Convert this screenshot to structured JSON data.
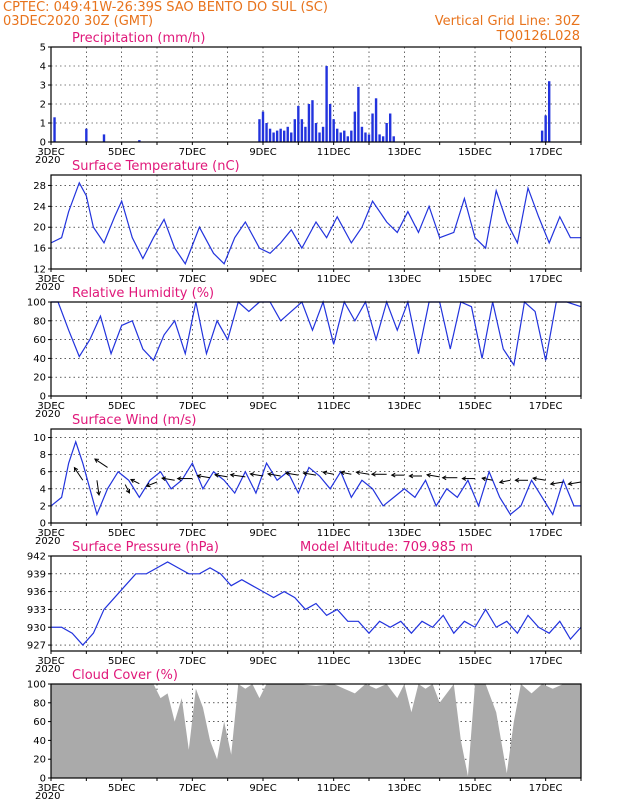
{
  "header": {
    "line1": "CPTEC:   049:41W-26:39S  SAO BENTO DO SUL (SC)",
    "line2": "03DEC2020 30Z (GMT)",
    "right1": "Vertical Grid Line: 30Z",
    "right2": "TQ0126L028"
  },
  "colors": {
    "series": "#2233dd",
    "cloud": "#aaaaaa",
    "title": "#e0187a",
    "header": "#e8731c",
    "arrow": "#000000"
  },
  "chart_data": [
    {
      "id": "precip",
      "type": "bar",
      "title": "Precipitation (mm/h)",
      "xlim": [
        0,
        15
      ],
      "ylim": [
        0,
        5
      ],
      "yticks": [
        0,
        1,
        2,
        3,
        4,
        5
      ],
      "x": [
        0.1,
        1,
        1.5,
        2.5,
        5.9,
        6.0,
        6.1,
        6.2,
        6.3,
        6.4,
        6.5,
        6.6,
        6.7,
        6.8,
        6.9,
        7.0,
        7.1,
        7.2,
        7.3,
        7.4,
        7.5,
        7.6,
        7.7,
        7.8,
        7.9,
        8.0,
        8.1,
        8.2,
        8.3,
        8.4,
        8.5,
        8.6,
        8.7,
        8.8,
        8.9,
        9.0,
        9.1,
        9.2,
        9.3,
        9.4,
        9.5,
        9.6,
        9.7,
        13.9,
        14.0,
        14.1
      ],
      "values": [
        1.3,
        0.7,
        0.4,
        0.1,
        1.2,
        1.6,
        1.0,
        0.7,
        0.5,
        0.6,
        0.7,
        0.6,
        0.8,
        0.5,
        1.2,
        1.9,
        1.2,
        0.8,
        2.0,
        2.2,
        1.0,
        0.5,
        0.8,
        4.0,
        2.0,
        1.2,
        0.7,
        0.5,
        0.6,
        0.3,
        0.6,
        1.6,
        2.9,
        0.8,
        0.5,
        0.4,
        1.5,
        2.3,
        0.4,
        0.3,
        1.0,
        1.5,
        0.3,
        0.6,
        1.4,
        3.2
      ]
    },
    {
      "id": "temp",
      "type": "line",
      "title": "Surface Temperature (nC)",
      "xlim": [
        0,
        15
      ],
      "ylim": [
        12,
        30
      ],
      "yticks": [
        12,
        16,
        20,
        24,
        28
      ],
      "x": [
        0,
        0.3,
        0.5,
        0.8,
        1.0,
        1.2,
        1.5,
        1.8,
        2.0,
        2.3,
        2.6,
        2.9,
        3.2,
        3.5,
        3.8,
        4.2,
        4.6,
        4.9,
        5.2,
        5.5,
        5.9,
        6.2,
        6.5,
        6.8,
        7.1,
        7.5,
        7.8,
        8.1,
        8.5,
        8.8,
        9.1,
        9.5,
        9.8,
        10.1,
        10.4,
        10.7,
        11.0,
        11.4,
        11.7,
        12.0,
        12.3,
        12.6,
        12.9,
        13.2,
        13.5,
        13.8,
        14.1,
        14.4,
        14.7,
        15.0
      ],
      "values": [
        17,
        18,
        23,
        28.5,
        26,
        20,
        17,
        22,
        25,
        18,
        14,
        18,
        21.5,
        16,
        13,
        20,
        15,
        13,
        18,
        21,
        16,
        15,
        17,
        19.5,
        16,
        21,
        18,
        22,
        17,
        20,
        25,
        21,
        19,
        23,
        19,
        24,
        18,
        19,
        25.5,
        18,
        16,
        27,
        21,
        17,
        27.5,
        22,
        17,
        22,
        18,
        18
      ]
    },
    {
      "id": "rh",
      "type": "line",
      "title": "Relative Humidity (%)",
      "xlim": [
        0,
        15
      ],
      "ylim": [
        0,
        100
      ],
      "yticks": [
        0,
        20,
        40,
        60,
        80,
        100
      ],
      "x": [
        0,
        0.2,
        0.5,
        0.8,
        1.1,
        1.4,
        1.7,
        2.0,
        2.3,
        2.6,
        2.9,
        3.2,
        3.5,
        3.8,
        4.1,
        4.4,
        4.7,
        5.0,
        5.3,
        5.6,
        5.9,
        6.2,
        6.5,
        6.8,
        7.1,
        7.4,
        7.7,
        8.0,
        8.3,
        8.6,
        8.9,
        9.2,
        9.5,
        9.8,
        10.1,
        10.4,
        10.7,
        11.0,
        11.3,
        11.6,
        11.9,
        12.2,
        12.5,
        12.8,
        13.1,
        13.4,
        13.7,
        14.0,
        14.3,
        14.6,
        15.0
      ],
      "values": [
        100,
        100,
        70,
        42,
        60,
        85,
        45,
        75,
        80,
        50,
        38,
        65,
        80,
        45,
        100,
        45,
        80,
        60,
        100,
        90,
        100,
        100,
        80,
        90,
        100,
        70,
        100,
        55,
        100,
        80,
        100,
        60,
        100,
        70,
        100,
        45,
        100,
        100,
        50,
        100,
        95,
        40,
        100,
        50,
        33,
        100,
        90,
        38,
        100,
        100,
        95
      ]
    },
    {
      "id": "wind",
      "type": "line",
      "title": "Surface Wind (m/s)",
      "xlim": [
        0,
        15
      ],
      "ylim": [
        0,
        11
      ],
      "yticks": [
        0,
        2,
        4,
        6,
        8,
        10
      ],
      "x": [
        0,
        0.3,
        0.5,
        0.7,
        0.9,
        1.1,
        1.3,
        1.6,
        1.9,
        2.2,
        2.5,
        2.8,
        3.1,
        3.4,
        3.7,
        4.0,
        4.3,
        4.6,
        4.9,
        5.2,
        5.5,
        5.8,
        6.1,
        6.4,
        6.7,
        7.0,
        7.3,
        7.6,
        7.9,
        8.2,
        8.5,
        8.8,
        9.1,
        9.4,
        9.7,
        10.0,
        10.3,
        10.6,
        10.9,
        11.2,
        11.5,
        11.8,
        12.1,
        12.4,
        12.7,
        13.0,
        13.3,
        13.6,
        13.9,
        14.2,
        14.5,
        14.8,
        15.0
      ],
      "values": [
        2,
        3,
        7,
        9.5,
        7,
        4,
        1,
        4,
        6,
        5,
        3,
        5,
        6,
        4,
        5,
        7,
        4,
        6,
        5,
        3.5,
        6,
        3.5,
        7,
        5,
        6,
        3.5,
        6.5,
        5.5,
        4,
        6,
        3,
        5,
        4,
        2,
        3,
        4,
        3,
        5,
        2,
        4,
        3,
        5,
        2,
        6,
        3,
        1,
        2,
        5,
        3,
        1,
        5,
        2,
        2
      ]
    },
    {
      "id": "pressure",
      "type": "line",
      "title": "Surface Pressure (hPa)",
      "annotation": "Model Altitude: 709.985 m",
      "xlim": [
        0,
        15
      ],
      "ylim": [
        926,
        942
      ],
      "yticks": [
        927,
        930,
        933,
        936,
        939,
        942
      ],
      "x": [
        0,
        0.3,
        0.6,
        0.9,
        1.2,
        1.5,
        1.8,
        2.1,
        2.4,
        2.7,
        3.0,
        3.3,
        3.6,
        3.9,
        4.2,
        4.5,
        4.8,
        5.1,
        5.4,
        5.7,
        6.0,
        6.3,
        6.6,
        6.9,
        7.2,
        7.5,
        7.8,
        8.1,
        8.4,
        8.7,
        9.0,
        9.3,
        9.6,
        9.9,
        10.2,
        10.5,
        10.8,
        11.1,
        11.4,
        11.7,
        12.0,
        12.3,
        12.6,
        12.9,
        13.2,
        13.5,
        13.8,
        14.1,
        14.4,
        14.7,
        15.0
      ],
      "values": [
        930,
        930,
        929,
        927,
        929,
        933,
        935,
        937,
        939,
        939,
        940,
        941,
        940,
        939,
        939,
        940,
        939,
        937,
        938,
        937,
        936,
        935,
        936,
        935,
        933,
        934,
        932,
        933,
        931,
        931,
        929,
        931,
        930,
        931,
        929,
        931,
        930,
        932,
        929,
        931,
        930,
        933,
        930,
        931,
        929,
        932,
        930,
        929,
        931,
        928,
        930
      ]
    },
    {
      "id": "cloud",
      "type": "area",
      "title": "Cloud Cover (%)",
      "xlim": [
        0,
        15
      ],
      "ylim": [
        0,
        100
      ],
      "yticks": [
        0,
        20,
        40,
        60,
        80,
        100
      ],
      "x": [
        0,
        2.9,
        3.1,
        3.3,
        3.5,
        3.7,
        3.9,
        4.1,
        4.3,
        4.5,
        4.7,
        4.9,
        5.1,
        5.3,
        5.5,
        5.7,
        5.9,
        6.1,
        6.5,
        7.0,
        7.5,
        8.0,
        8.3,
        8.6,
        8.9,
        9.2,
        9.5,
        9.8,
        10.0,
        10.2,
        10.4,
        10.6,
        10.8,
        11.0,
        11.2,
        11.4,
        11.6,
        11.8,
        12.0,
        12.3,
        12.6,
        12.9,
        13.1,
        13.3,
        13.6,
        13.9,
        14.2,
        14.5,
        14.8,
        15.0
      ],
      "values": [
        100,
        100,
        85,
        90,
        60,
        85,
        30,
        95,
        75,
        40,
        20,
        60,
        25,
        100,
        95,
        100,
        85,
        100,
        100,
        100,
        98,
        100,
        95,
        90,
        100,
        95,
        100,
        85,
        100,
        70,
        100,
        95,
        100,
        80,
        90,
        100,
        40,
        2,
        100,
        100,
        70,
        5,
        60,
        100,
        90,
        100,
        95,
        100,
        100,
        100
      ]
    }
  ],
  "wind_vectors": {
    "x": [
      0.9,
      1.3,
      1.6,
      2.1,
      2.5,
      3.0,
      3.5,
      4.0,
      4.5,
      5.0,
      5.5,
      6.0,
      6.5,
      7.0,
      7.5,
      8.0,
      8.5,
      9.0,
      9.5,
      10.0,
      10.5,
      11.0,
      11.5,
      12.0,
      12.5,
      13.0,
      13.5,
      14.0,
      14.5,
      15.0
    ],
    "u": [
      -2,
      0.5,
      -3,
      1,
      -2,
      -2.5,
      -3,
      -3.5,
      -3,
      -3,
      -3.5,
      -3,
      -3,
      -3,
      -3,
      -2.5,
      -2.5,
      -3,
      -3.5,
      -3,
      -3,
      -3,
      -3.5,
      -3,
      -2.5,
      -2.5,
      -3,
      -3,
      -3,
      -3
    ],
    "v": [
      3,
      -3.5,
      2,
      -2,
      1,
      -1,
      0.5,
      0,
      0.5,
      0.5,
      0.5,
      0.5,
      0.5,
      0.5,
      0.5,
      0.5,
      0.5,
      0.5,
      0,
      0,
      0,
      0.5,
      0,
      0,
      0.5,
      -0.5,
      0,
      0.5,
      -0.5,
      -0.5
    ],
    "y": [
      5,
      5,
      6.5,
      4.5,
      4.6,
      4.8,
      5,
      5.2,
      5.3,
      5.4,
      5.4,
      5.5,
      5.5,
      5.6,
      5.6,
      5.7,
      5.7,
      5.7,
      5.7,
      5.6,
      5.5,
      5.4,
      5.3,
      5.2,
      5,
      5,
      5,
      5,
      4.8,
      4.8
    ]
  },
  "xaxis": {
    "ticks": [
      0,
      1,
      2,
      3,
      4,
      5,
      6,
      7,
      8,
      9,
      10,
      11,
      12,
      13,
      14,
      15
    ],
    "labels": [
      "3DEC",
      "5DEC",
      "7DEC",
      "9DEC",
      "11DEC",
      "13DEC",
      "15DEC",
      "17DEC"
    ],
    "label_positions": [
      0,
      2,
      4,
      6,
      8,
      10,
      12,
      14
    ],
    "year_label": "2020"
  }
}
